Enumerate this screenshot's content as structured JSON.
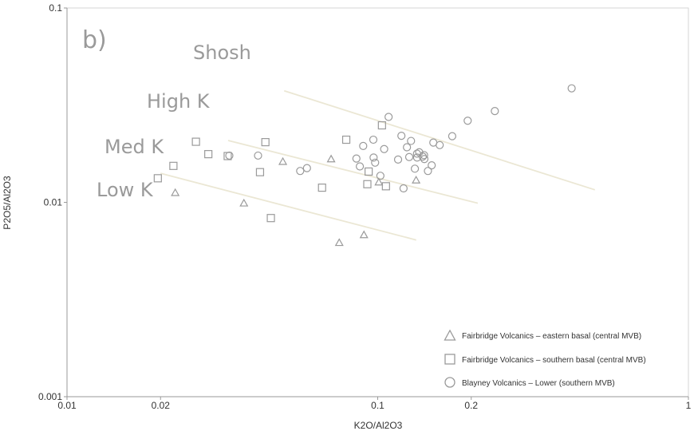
{
  "chart_data": {
    "type": "scatter",
    "panel_label": "b)",
    "xlabel": "K2O/Al2O3",
    "ylabel": "P2O5/Al2O3",
    "x_scale": "log",
    "y_scale": "log",
    "xlim": [
      0.01,
      1
    ],
    "ylim": [
      0.001,
      0.1
    ],
    "x_ticks": [
      "0.01",
      "0.02",
      "0.1",
      "0.2",
      "1"
    ],
    "y_ticks": [
      "0.001",
      "0.01",
      "0.1"
    ],
    "grid": false,
    "legend_position": "bottom-right",
    "field_labels": [
      {
        "name": "shosh",
        "text": "Shosh"
      },
      {
        "name": "high-k",
        "text": "High K"
      },
      {
        "name": "med-k",
        "text": "Med K"
      },
      {
        "name": "low-k",
        "text": "Low K"
      }
    ],
    "divider_lines": [
      {
        "name": "shosh-highk",
        "points": [
          [
            0.05,
            0.0375
          ],
          [
            0.5,
            0.0116
          ]
        ]
      },
      {
        "name": "highk-medk",
        "points": [
          [
            0.033,
            0.0208
          ],
          [
            0.21,
            0.0099
          ]
        ]
      },
      {
        "name": "medk-lowk",
        "points": [
          [
            0.02,
            0.0141
          ],
          [
            0.133,
            0.0064
          ]
        ]
      }
    ],
    "series": [
      {
        "name": "Fairbridge Volcanics – eastern basal (central MVB)",
        "marker": "triangle",
        "color": "#9a9a9a",
        "points": [
          [
            0.0223,
            0.0112
          ],
          [
            0.0371,
            0.0099
          ],
          [
            0.0495,
            0.0162
          ],
          [
            0.0708,
            0.0167
          ],
          [
            0.0752,
            0.0062
          ],
          [
            0.1008,
            0.0127
          ],
          [
            0.1329,
            0.013
          ],
          [
            0.0903,
            0.0068
          ]
        ]
      },
      {
        "name": "Fairbridge Volcanics – southern basal (central MVB)",
        "marker": "square",
        "color": "#9a9a9a",
        "points": [
          [
            0.0196,
            0.0133
          ],
          [
            0.022,
            0.0154
          ],
          [
            0.026,
            0.0205
          ],
          [
            0.0285,
            0.0177
          ],
          [
            0.0329,
            0.0173
          ],
          [
            0.0418,
            0.0143
          ],
          [
            0.0435,
            0.0204
          ],
          [
            0.0453,
            0.0083
          ],
          [
            0.0662,
            0.0119
          ],
          [
            0.0792,
            0.021
          ],
          [
            0.0935,
            0.0144
          ],
          [
            0.0926,
            0.0124
          ],
          [
            0.1032,
            0.0249
          ],
          [
            0.1063,
            0.0121
          ]
        ]
      },
      {
        "name": "Blayney Volcanics – Lower (southern MVB)",
        "marker": "circle",
        "color": "#9a9a9a",
        "points": [
          [
            0.0333,
            0.0174
          ],
          [
            0.0412,
            0.0174
          ],
          [
            0.0563,
            0.0145
          ],
          [
            0.0592,
            0.015
          ],
          [
            0.0854,
            0.0168
          ],
          [
            0.0876,
            0.0153
          ],
          [
            0.0898,
            0.0195
          ],
          [
            0.097,
            0.017
          ],
          [
            0.0981,
            0.016
          ],
          [
            0.0968,
            0.021
          ],
          [
            0.102,
            0.0137
          ],
          [
            0.1049,
            0.0188
          ],
          [
            0.1084,
            0.0275
          ],
          [
            0.1163,
            0.0166
          ],
          [
            0.1192,
            0.022
          ],
          [
            0.1211,
            0.0118
          ],
          [
            0.1242,
            0.0192
          ],
          [
            0.1263,
            0.0171
          ],
          [
            0.128,
            0.0207
          ],
          [
            0.1317,
            0.0149
          ],
          [
            0.1338,
            0.0178
          ],
          [
            0.1339,
            0.017
          ],
          [
            0.136,
            0.0181
          ],
          [
            0.1396,
            0.0172
          ],
          [
            0.141,
            0.0175
          ],
          [
            0.1413,
            0.0167
          ],
          [
            0.1451,
            0.0145
          ],
          [
            0.1492,
            0.0155
          ],
          [
            0.151,
            0.0203
          ],
          [
            0.1583,
            0.0197
          ],
          [
            0.1737,
            0.0219
          ],
          [
            0.1948,
            0.0263
          ],
          [
            0.2382,
            0.0295
          ],
          [
            0.4209,
            0.0386
          ]
        ]
      }
    ]
  }
}
